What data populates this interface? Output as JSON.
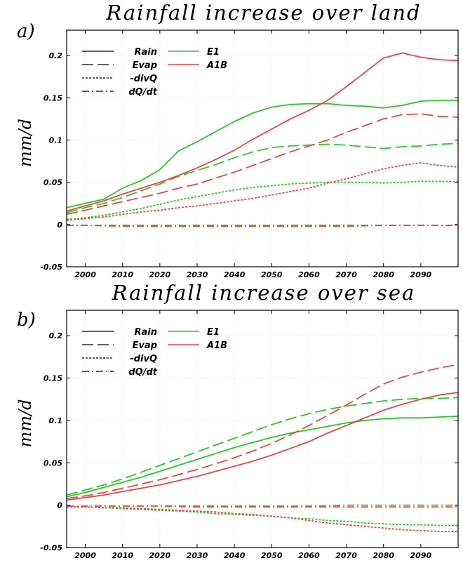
{
  "colors": {
    "E1": "#22cc22",
    "A1B": "#ee4444",
    "legend_style": "#000000"
  },
  "line_styles": {
    "Rain": "solid",
    "Evap": "long-dash",
    "-divQ": "short-dash",
    "dQ/dt": "dash-dot"
  },
  "chart_data": [
    {
      "type": "line",
      "panel": "a)",
      "title": "Rainfall increase over land",
      "xlabel": "",
      "ylabel": "mm/d",
      "xlim": [
        1995,
        2100
      ],
      "ylim": [
        -0.05,
        0.23
      ],
      "xticks": [
        2000,
        2010,
        2020,
        2030,
        2040,
        2050,
        2060,
        2070,
        2080,
        2090
      ],
      "xtick_labels": [
        "2000",
        "2010",
        "2020",
        "2030",
        "2040",
        "2050",
        "2060",
        "2070",
        "2080",
        "2090"
      ],
      "yticks": [
        -0.05,
        0,
        0.05,
        0.1,
        0.15,
        0.2
      ],
      "ytick_labels": [
        "-0.05",
        "0",
        "0.05",
        "0.1",
        "0.15",
        "0.2"
      ],
      "grid": true,
      "legend": {
        "placement": "top-left",
        "styles": [
          "Rain",
          "Evap",
          "-divQ",
          "dQ/dt"
        ],
        "scenarios": [
          "E1",
          "A1B"
        ]
      },
      "series": [
        {
          "name": "Rain E1",
          "variable": "Rain",
          "scenario": "E1",
          "x": [
            1995,
            2000,
            2005,
            2010,
            2015,
            2020,
            2025,
            2030,
            2035,
            2040,
            2045,
            2050,
            2055,
            2060,
            2065,
            2070,
            2075,
            2080,
            2085,
            2090,
            2095,
            2100
          ],
          "y": [
            0.02,
            0.025,
            0.03,
            0.043,
            0.052,
            0.065,
            0.087,
            0.098,
            0.11,
            0.122,
            0.132,
            0.139,
            0.142,
            0.143,
            0.143,
            0.141,
            0.14,
            0.138,
            0.141,
            0.146,
            0.147,
            0.147
          ]
        },
        {
          "name": "Evap E1",
          "variable": "Evap",
          "scenario": "E1",
          "x": [
            1995,
            2000,
            2005,
            2010,
            2015,
            2020,
            2025,
            2030,
            2035,
            2040,
            2045,
            2050,
            2055,
            2060,
            2065,
            2070,
            2075,
            2080,
            2085,
            2090,
            2095,
            2100
          ],
          "y": [
            0.014,
            0.02,
            0.025,
            0.032,
            0.04,
            0.048,
            0.057,
            0.064,
            0.071,
            0.079,
            0.086,
            0.091,
            0.093,
            0.094,
            0.095,
            0.094,
            0.092,
            0.09,
            0.092,
            0.093,
            0.095,
            0.096
          ]
        },
        {
          "name": "-divQ E1",
          "variable": "-divQ",
          "scenario": "E1",
          "x": [
            1995,
            2000,
            2005,
            2010,
            2015,
            2020,
            2025,
            2030,
            2035,
            2040,
            2045,
            2050,
            2055,
            2060,
            2065,
            2070,
            2075,
            2080,
            2085,
            2090,
            2095,
            2100
          ],
          "y": [
            0.006,
            0.008,
            0.011,
            0.015,
            0.019,
            0.024,
            0.029,
            0.033,
            0.037,
            0.041,
            0.044,
            0.046,
            0.048,
            0.049,
            0.05,
            0.05,
            0.05,
            0.049,
            0.05,
            0.051,
            0.051,
            0.051
          ]
        },
        {
          "name": "dQ/dt E1",
          "variable": "dQ/dt",
          "scenario": "E1",
          "x": [
            1995,
            2000,
            2010,
            2020,
            2030,
            2040,
            2050,
            2060,
            2070,
            2080,
            2090,
            2100
          ],
          "y": [
            -0.001,
            -0.001,
            -0.001,
            -0.001,
            -0.001,
            -0.001,
            -0.001,
            -0.001,
            -0.001,
            -0.001,
            -0.001,
            -0.001
          ]
        },
        {
          "name": "Rain A1B",
          "variable": "Rain",
          "scenario": "A1B",
          "x": [
            1995,
            2000,
            2005,
            2010,
            2015,
            2020,
            2025,
            2030,
            2035,
            2040,
            2045,
            2050,
            2055,
            2060,
            2065,
            2070,
            2075,
            2080,
            2085,
            2090,
            2095,
            2100
          ],
          "y": [
            0.016,
            0.022,
            0.028,
            0.036,
            0.043,
            0.05,
            0.058,
            0.067,
            0.077,
            0.088,
            0.101,
            0.113,
            0.125,
            0.135,
            0.147,
            0.163,
            0.18,
            0.197,
            0.203,
            0.198,
            0.195,
            0.194
          ]
        },
        {
          "name": "Evap A1B",
          "variable": "Evap",
          "scenario": "A1B",
          "x": [
            1995,
            2000,
            2005,
            2010,
            2015,
            2020,
            2025,
            2030,
            2035,
            2040,
            2045,
            2050,
            2055,
            2060,
            2065,
            2070,
            2075,
            2080,
            2085,
            2090,
            2095,
            2100
          ],
          "y": [
            0.012,
            0.017,
            0.022,
            0.027,
            0.032,
            0.037,
            0.043,
            0.048,
            0.055,
            0.062,
            0.07,
            0.078,
            0.086,
            0.093,
            0.1,
            0.109,
            0.117,
            0.125,
            0.13,
            0.131,
            0.128,
            0.127
          ]
        },
        {
          "name": "-divQ A1B",
          "variable": "-divQ",
          "scenario": "A1B",
          "x": [
            1995,
            2000,
            2005,
            2010,
            2015,
            2020,
            2025,
            2030,
            2035,
            2040,
            2045,
            2050,
            2055,
            2060,
            2065,
            2070,
            2075,
            2080,
            2085,
            2090,
            2095,
            2100
          ],
          "y": [
            0.005,
            0.007,
            0.009,
            0.012,
            0.015,
            0.017,
            0.02,
            0.022,
            0.025,
            0.028,
            0.031,
            0.035,
            0.039,
            0.043,
            0.049,
            0.054,
            0.06,
            0.066,
            0.07,
            0.073,
            0.07,
            0.068
          ]
        },
        {
          "name": "dQ/dt A1B",
          "variable": "dQ/dt",
          "scenario": "A1B",
          "x": [
            1995,
            2000,
            2010,
            2020,
            2030,
            2040,
            2050,
            2060,
            2070,
            2080,
            2090,
            2100
          ],
          "y": [
            -0.001,
            -0.001,
            -0.002,
            -0.002,
            -0.002,
            -0.002,
            -0.002,
            -0.002,
            -0.002,
            -0.001,
            -0.001,
            -0.001
          ]
        }
      ]
    },
    {
      "type": "line",
      "panel": "b)",
      "title": "Rainfall increase over sea",
      "xlabel": "",
      "ylabel": "mm/d",
      "xlim": [
        1995,
        2100
      ],
      "ylim": [
        -0.05,
        0.23
      ],
      "xticks": [
        2000,
        2010,
        2020,
        2030,
        2040,
        2050,
        2060,
        2070,
        2080,
        2090
      ],
      "xtick_labels": [
        "2000",
        "2010",
        "2020",
        "2030",
        "2040",
        "2050",
        "2060",
        "2070",
        "2080",
        "2090"
      ],
      "yticks": [
        -0.05,
        0,
        0.05,
        0.1,
        0.15,
        0.2
      ],
      "ytick_labels": [
        "-0.05",
        "0",
        "0.05",
        "0.1",
        "0.15",
        "0.2"
      ],
      "grid": true,
      "legend": {
        "placement": "top-left",
        "styles": [
          "Rain",
          "Evap",
          "-divQ",
          "dQ/dt"
        ],
        "scenarios": [
          "E1",
          "A1B"
        ]
      },
      "series": [
        {
          "name": "Rain E1",
          "variable": "Rain",
          "scenario": "E1",
          "x": [
            1995,
            2000,
            2005,
            2010,
            2015,
            2020,
            2025,
            2030,
            2035,
            2040,
            2045,
            2050,
            2055,
            2060,
            2065,
            2070,
            2075,
            2080,
            2085,
            2090,
            2095,
            2100
          ],
          "y": [
            0.01,
            0.015,
            0.021,
            0.027,
            0.033,
            0.04,
            0.047,
            0.054,
            0.061,
            0.068,
            0.074,
            0.08,
            0.085,
            0.089,
            0.093,
            0.097,
            0.1,
            0.102,
            0.103,
            0.103,
            0.104,
            0.105
          ]
        },
        {
          "name": "Evap E1",
          "variable": "Evap",
          "scenario": "E1",
          "x": [
            1995,
            2000,
            2005,
            2010,
            2015,
            2020,
            2025,
            2030,
            2035,
            2040,
            2045,
            2050,
            2055,
            2060,
            2065,
            2070,
            2075,
            2080,
            2085,
            2090,
            2095,
            2100
          ],
          "y": [
            0.012,
            0.018,
            0.024,
            0.031,
            0.039,
            0.047,
            0.055,
            0.063,
            0.071,
            0.079,
            0.087,
            0.095,
            0.102,
            0.108,
            0.113,
            0.117,
            0.12,
            0.123,
            0.125,
            0.126,
            0.126,
            0.127
          ]
        },
        {
          "name": "-divQ E1",
          "variable": "-divQ",
          "scenario": "E1",
          "x": [
            1995,
            2000,
            2005,
            2010,
            2015,
            2020,
            2025,
            2030,
            2035,
            2040,
            2045,
            2050,
            2055,
            2060,
            2065,
            2070,
            2075,
            2080,
            2085,
            2090,
            2095,
            2100
          ],
          "y": [
            -0.002,
            -0.002,
            -0.003,
            -0.004,
            -0.005,
            -0.006,
            -0.007,
            -0.008,
            -0.01,
            -0.011,
            -0.012,
            -0.013,
            -0.015,
            -0.016,
            -0.018,
            -0.019,
            -0.021,
            -0.022,
            -0.023,
            -0.023,
            -0.024,
            -0.024
          ]
        },
        {
          "name": "dQ/dt E1",
          "variable": "dQ/dt",
          "scenario": "E1",
          "x": [
            1995,
            2000,
            2010,
            2020,
            2030,
            2040,
            2050,
            2060,
            2070,
            2080,
            2090,
            2100
          ],
          "y": [
            -0.001,
            -0.001,
            -0.001,
            -0.001,
            -0.001,
            -0.001,
            -0.001,
            -0.001,
            0.0,
            0.0,
            0.0,
            0.0
          ]
        },
        {
          "name": "Rain A1B",
          "variable": "Rain",
          "scenario": "A1B",
          "x": [
            1995,
            2000,
            2005,
            2010,
            2015,
            2020,
            2025,
            2030,
            2035,
            2040,
            2045,
            2050,
            2055,
            2060,
            2065,
            2070,
            2075,
            2080,
            2085,
            2090,
            2095,
            2100
          ],
          "y": [
            0.006,
            0.009,
            0.012,
            0.016,
            0.02,
            0.024,
            0.029,
            0.034,
            0.04,
            0.046,
            0.052,
            0.059,
            0.067,
            0.075,
            0.085,
            0.094,
            0.103,
            0.112,
            0.119,
            0.125,
            0.13,
            0.133
          ]
        },
        {
          "name": "Evap A1B",
          "variable": "Evap",
          "scenario": "A1B",
          "x": [
            1995,
            2000,
            2005,
            2010,
            2015,
            2020,
            2025,
            2030,
            2035,
            2040,
            2045,
            2050,
            2055,
            2060,
            2065,
            2070,
            2075,
            2080,
            2085,
            2090,
            2095,
            2100
          ],
          "y": [
            0.008,
            0.011,
            0.015,
            0.02,
            0.025,
            0.03,
            0.036,
            0.042,
            0.049,
            0.056,
            0.064,
            0.073,
            0.083,
            0.094,
            0.106,
            0.118,
            0.131,
            0.143,
            0.151,
            0.157,
            0.162,
            0.166
          ]
        },
        {
          "name": "-divQ A1B",
          "variable": "-divQ",
          "scenario": "A1B",
          "x": [
            1995,
            2000,
            2005,
            2010,
            2015,
            2020,
            2025,
            2030,
            2035,
            2040,
            2045,
            2050,
            2055,
            2060,
            2065,
            2070,
            2075,
            2080,
            2085,
            2090,
            2095,
            2100
          ],
          "y": [
            -0.002,
            -0.002,
            -0.003,
            -0.003,
            -0.004,
            -0.005,
            -0.006,
            -0.007,
            -0.008,
            -0.01,
            -0.011,
            -0.013,
            -0.015,
            -0.018,
            -0.021,
            -0.023,
            -0.025,
            -0.027,
            -0.029,
            -0.03,
            -0.031,
            -0.031
          ]
        },
        {
          "name": "dQ/dt A1B",
          "variable": "dQ/dt",
          "scenario": "A1B",
          "x": [
            1995,
            2000,
            2010,
            2020,
            2030,
            2040,
            2050,
            2060,
            2070,
            2080,
            2090,
            2100
          ],
          "y": [
            -0.001,
            -0.001,
            -0.001,
            -0.001,
            -0.002,
            -0.002,
            -0.002,
            -0.002,
            -0.002,
            -0.002,
            -0.002,
            -0.002
          ]
        }
      ]
    }
  ]
}
